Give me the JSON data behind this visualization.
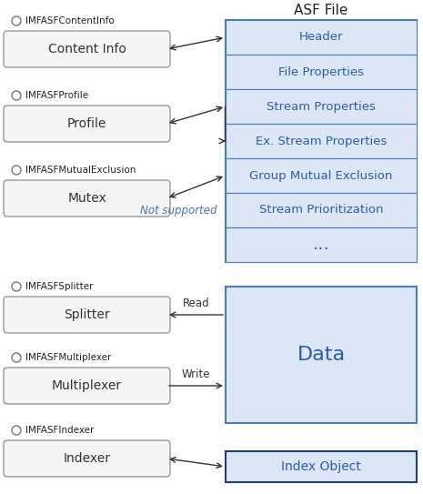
{
  "title": "ASF File",
  "bg_color": "#ffffff",
  "right_text_color": "#2a5db0",
  "right_border_color": "#4a7abf",
  "right_fill_color": "#dce6f5",
  "right_outer_fill": "#e8eef8",
  "left_box_fill": "#f5f5f5",
  "left_box_border": "#999999",
  "left_box_text": "#333333",
  "arrow_color": "#333333",
  "label_color": "#222222",
  "not_supported_color": "#4477aa",
  "index_border_color": "#1a3f7a",
  "index_fill_color": "#dce6f5",
  "header_sections": [
    "Header",
    "File Properties",
    "Stream Properties",
    "Ex. Stream Properties",
    "Group Mutual Exclusion",
    "Stream Prioritization",
    "..."
  ]
}
